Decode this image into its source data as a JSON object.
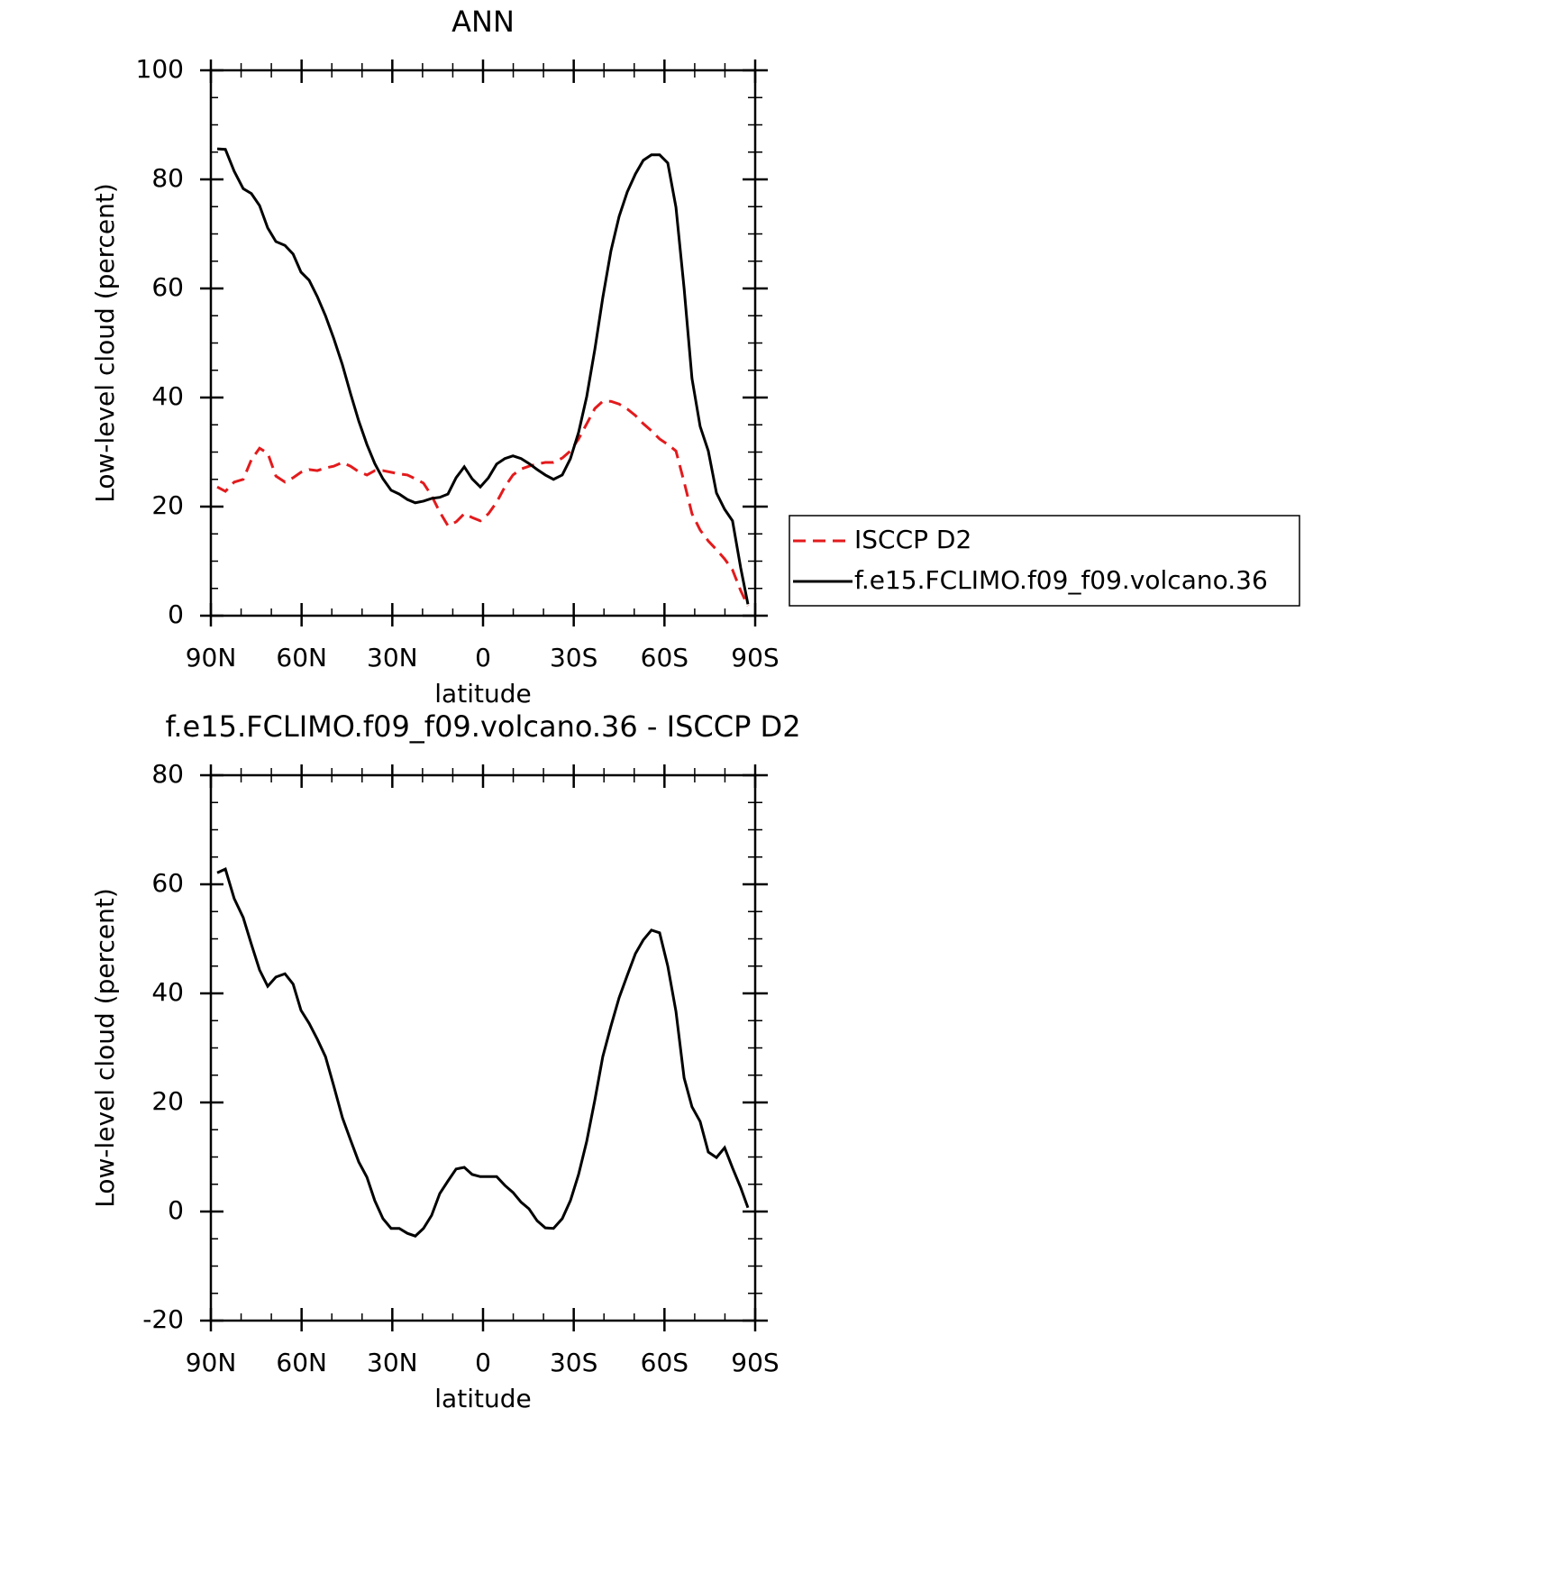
{
  "chart_data": [
    {
      "type": "line",
      "title": "ANN",
      "xlabel": "latitude",
      "ylabel": "Low-level cloud (percent)",
      "x": [
        87.9,
        85.2,
        82.3,
        79.3,
        76.6,
        73.9,
        71.2,
        68.5,
        65.5,
        62.8,
        60.2,
        57.5,
        54.8,
        52.1,
        49.4,
        46.5,
        43.8,
        41.1,
        38.4,
        35.8,
        33.1,
        30.4,
        27.7,
        25.0,
        22.4,
        19.7,
        17.0,
        14.3,
        11.6,
        8.9,
        6.2,
        3.6,
        0.9,
        -1.8,
        -4.5,
        -7.2,
        -9.9,
        -12.6,
        -15.2,
        -17.9,
        -20.6,
        -23.3,
        -26.2,
        -28.9,
        -31.6,
        -34.3,
        -37.0,
        -39.6,
        -42.3,
        -45.0,
        -47.7,
        -50.4,
        -53.0,
        -55.7,
        -58.4,
        -61.1,
        -63.8,
        -66.5,
        -69.1,
        -71.8,
        -74.5,
        -77.2,
        -79.9,
        -82.5,
        -85.2,
        -87.6
      ],
      "series": [
        {
          "name": "ISCCP D2",
          "color": "#e31a1c",
          "style": "dashed",
          "values": [
            23.6,
            22.8,
            24.5,
            25,
            28.6,
            30.7,
            29.8,
            25.6,
            24.5,
            25.3,
            26.3,
            26.8,
            26.6,
            27.1,
            27.4,
            28.1,
            27.4,
            26.4,
            25.8,
            26.6,
            26.6,
            26.3,
            26,
            25.8,
            25.1,
            24.3,
            22,
            19,
            16.5,
            17.2,
            18.7,
            18,
            17.4,
            18.7,
            20.8,
            23.6,
            25.8,
            26.9,
            27.4,
            27.8,
            28.1,
            28.1,
            28.9,
            30.2,
            32.4,
            35.2,
            38,
            39.3,
            39.3,
            38.8,
            37.9,
            36.7,
            35.2,
            33.9,
            32.4,
            31.4,
            30.2,
            24.5,
            18.7,
            15.7,
            13.7,
            12.1,
            10.4,
            8.4,
            4.6,
            1.8
          ]
        },
        {
          "name": "f.e15.FCLIMO.f09_f09.volcano.36",
          "color": "#000000",
          "style": "solid",
          "values": [
            85.6,
            85.5,
            81.5,
            78.3,
            77.4,
            75.2,
            71.1,
            68.6,
            67.9,
            66.3,
            63,
            61.5,
            58.5,
            55,
            50.9,
            46,
            40.7,
            35.7,
            31.4,
            27.9,
            25.1,
            23,
            22.3,
            21.3,
            20.7,
            21,
            21.5,
            21.7,
            22.3,
            25.3,
            27.3,
            25.1,
            23.6,
            25.3,
            27.8,
            28.8,
            29.3,
            28.8,
            27.9,
            26.8,
            25.8,
            25,
            25.8,
            28.8,
            33.6,
            40.2,
            48.9,
            58.3,
            66.9,
            73.2,
            77.7,
            81,
            83.5,
            84.5,
            84.5,
            83,
            74.9,
            60,
            43.5,
            34.7,
            30.2,
            22.5,
            19.5,
            17.4,
            8.8,
            2.1
          ]
        }
      ],
      "xlim": [
        90,
        -90
      ],
      "ylim": [
        0,
        100
      ],
      "yticks": [
        0,
        20,
        40,
        60,
        80,
        100
      ],
      "xticks": [
        {
          "value": 90,
          "label": "90N"
        },
        {
          "value": 60,
          "label": "60N"
        },
        {
          "value": 30,
          "label": "30N"
        },
        0,
        {
          "value": -30,
          "label": "30S"
        },
        {
          "value": -60,
          "label": "60S"
        },
        {
          "value": -90,
          "label": "90S"
        }
      ],
      "legend": "right"
    },
    {
      "type": "line",
      "title": "f.e15.FCLIMO.f09_f09.volcano.36 - ISCCP D2",
      "xlabel": "latitude",
      "ylabel": "Low-level cloud (percent)",
      "x": [
        87.9,
        85.2,
        82.3,
        79.3,
        76.6,
        73.9,
        71.2,
        68.5,
        65.5,
        62.8,
        60.2,
        57.5,
        54.8,
        52.1,
        49.4,
        46.5,
        43.8,
        41.1,
        38.4,
        35.8,
        33.1,
        30.4,
        27.7,
        25.0,
        22.4,
        19.7,
        17.0,
        14.3,
        11.6,
        8.9,
        6.2,
        3.6,
        0.9,
        -1.8,
        -4.5,
        -7.2,
        -9.9,
        -12.6,
        -15.2,
        -17.9,
        -20.6,
        -23.3,
        -26.2,
        -28.9,
        -31.6,
        -34.3,
        -37.0,
        -39.6,
        -42.3,
        -45.0,
        -47.7,
        -50.4,
        -53.0,
        -55.7,
        -58.4,
        -61.1,
        -63.8,
        -66.5,
        -69.1,
        -71.8,
        -74.5,
        -77.2,
        -79.9,
        -82.5,
        -85.2,
        -87.6
      ],
      "color": "#000000",
      "values": [
        62.1,
        62.8,
        57.4,
        53.9,
        49,
        44.3,
        41.3,
        43,
        43.6,
        41.7,
        36.9,
        34.5,
        31.6,
        28.4,
        23.1,
        17.2,
        13.1,
        9.1,
        6.3,
        2,
        -1.3,
        -3.1,
        -3.1,
        -4,
        -4.5,
        -3.1,
        -0.7,
        3.3,
        5.6,
        7.8,
        8.1,
        6.8,
        6.4,
        6.4,
        6.4,
        4.8,
        3.5,
        1.7,
        0.5,
        -1.7,
        -3,
        -3.1,
        -1.3,
        2,
        6.8,
        12.9,
        20.5,
        28.4,
        34,
        39.2,
        43.3,
        47.3,
        49.8,
        51.6,
        51.1,
        45,
        36.7,
        24.5,
        19.2,
        16.5,
        10.9,
        9.9,
        11.7,
        8,
        4.4,
        0.7
      ],
      "xlim": [
        90,
        -90
      ],
      "ylim": [
        -20,
        80
      ],
      "yticks": [
        -20,
        0,
        20,
        40,
        60,
        80
      ],
      "xticks": [
        {
          "value": 90,
          "label": "90N"
        },
        {
          "value": 60,
          "label": "60N"
        },
        {
          "value": 30,
          "label": "30N"
        },
        0,
        {
          "value": -30,
          "label": "30S"
        },
        {
          "value": -60,
          "label": "60S"
        },
        {
          "value": -90,
          "label": "90S"
        }
      ]
    }
  ]
}
